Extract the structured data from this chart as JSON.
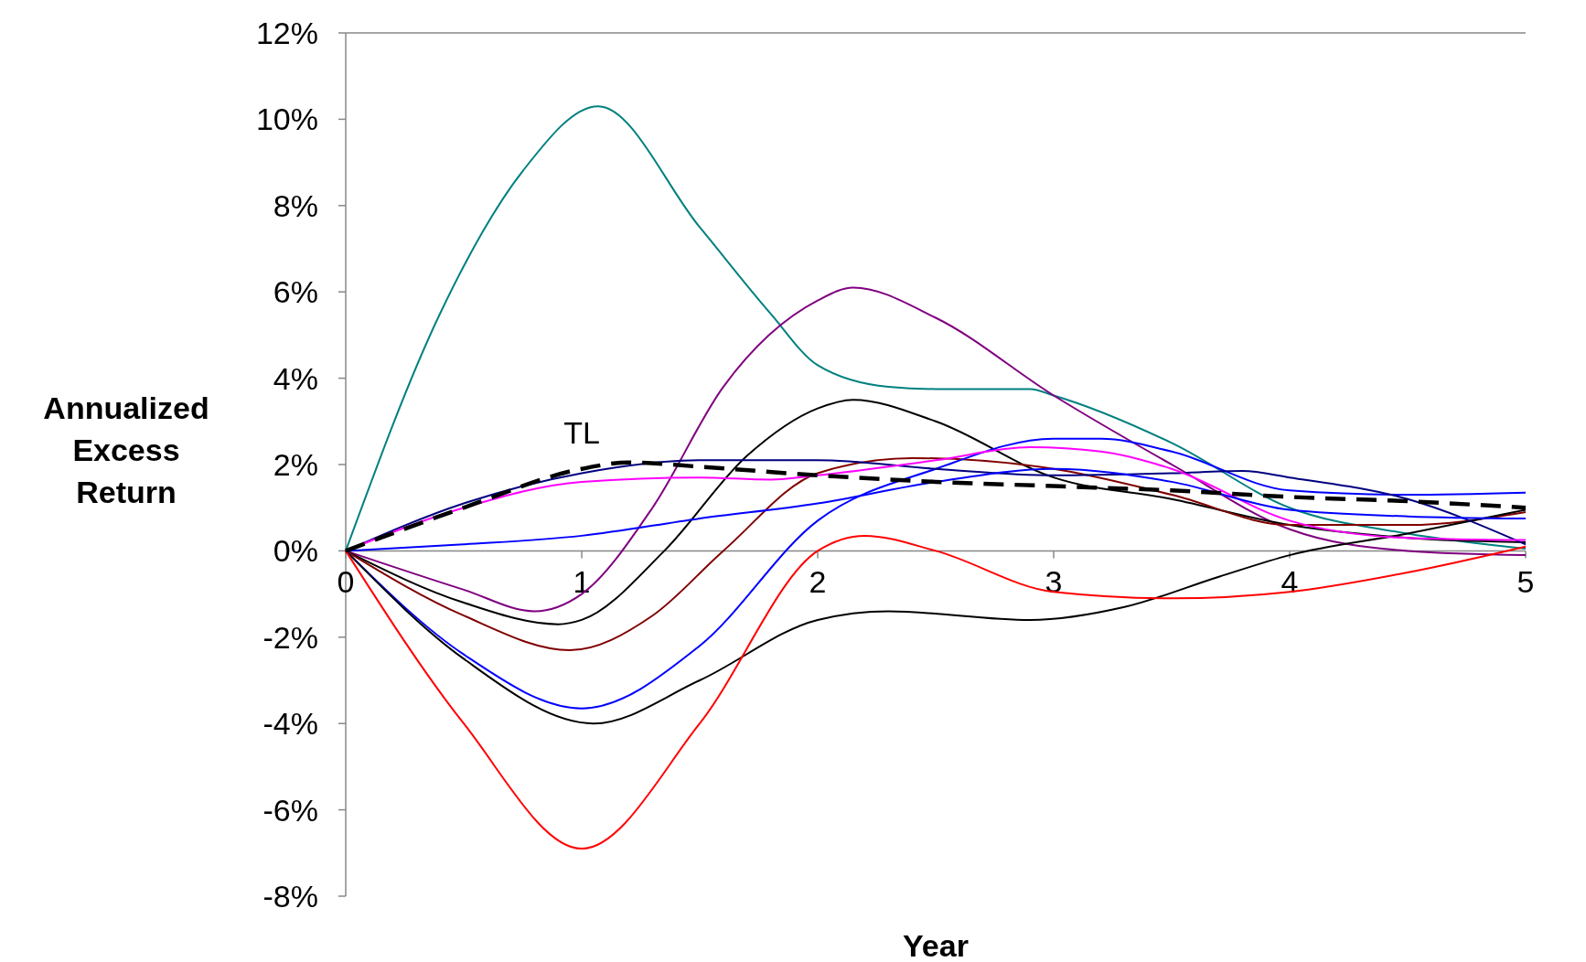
{
  "chart_data": {
    "type": "line",
    "xlabel": "Year",
    "ylabel": "Annualized Excess Return",
    "xlim": [
      0,
      5
    ],
    "xticks": [
      0,
      1,
      2,
      3,
      4,
      5
    ],
    "ylim": [
      -8,
      12
    ],
    "yticks": [
      {
        "value": -8,
        "label": "-8%"
      },
      {
        "value": -6,
        "label": "-6%"
      },
      {
        "value": -4,
        "label": "-4%"
      },
      {
        "value": -2,
        "label": "-2%"
      },
      {
        "value": 0,
        "label": "0%"
      },
      {
        "value": 2,
        "label": "2%"
      },
      {
        "value": 4,
        "label": "4%"
      },
      {
        "value": 6,
        "label": "6%"
      },
      {
        "value": 8,
        "label": "8%"
      },
      {
        "value": 10,
        "label": "10%"
      },
      {
        "value": 12,
        "label": "12%"
      }
    ],
    "grid": false,
    "x": [
      0,
      0.5,
      1,
      1.5,
      2,
      2.5,
      3,
      3.5,
      4,
      4.5,
      5
    ],
    "series": [
      {
        "color": "#008080",
        "x": [
          0,
          0.4,
          0.75,
          1.07,
          1.5,
          1.8,
          2,
          2.3,
          2.5,
          2.9,
          3,
          3.5,
          4,
          4.5,
          5
        ],
        "values": [
          0,
          5.5,
          8.8,
          10.3,
          7.5,
          5.5,
          4.3,
          3.8,
          3.75,
          3.75,
          3.6,
          2.5,
          1.0,
          0.4,
          0.05
        ]
      },
      {
        "color": "#800080",
        "x": [
          0,
          0.5,
          0.8,
          1,
          1.3,
          1.6,
          2,
          2.15,
          2.5,
          3,
          3.5,
          4,
          4.5,
          5
        ],
        "values": [
          0,
          -0.9,
          -1.4,
          -1.0,
          1.0,
          3.8,
          5.8,
          6.1,
          5.4,
          3.6,
          2.0,
          0.5,
          0.0,
          -0.1
        ]
      },
      {
        "color": "#000000",
        "x": [
          0,
          0.5,
          0.9,
          1,
          1.35,
          1.7,
          2,
          2.15,
          2.5,
          3,
          3.5,
          4,
          4.5,
          5
        ],
        "values": [
          0,
          -1.2,
          -1.7,
          -1.6,
          0,
          2.2,
          3.3,
          3.5,
          3.0,
          1.7,
          1.2,
          0.6,
          0.3,
          0.2
        ]
      },
      {
        "color": "#800000",
        "x": [
          0,
          0.5,
          0.95,
          1.3,
          1.6,
          2,
          2.4,
          3,
          3.5,
          4,
          4.5,
          5
        ],
        "values": [
          0,
          -1.5,
          -2.3,
          -1.5,
          0,
          1.8,
          2.15,
          1.9,
          1.3,
          0.6,
          0.6,
          0.9
        ]
      },
      {
        "color": "#0000ff",
        "x": [
          0,
          0.5,
          1,
          1.5,
          2,
          2.5,
          3,
          3.2,
          3.5,
          4,
          4.5,
          5
        ],
        "values": [
          0,
          -2.4,
          -3.65,
          -2.2,
          0.7,
          1.9,
          2.6,
          2.6,
          2.3,
          1.4,
          1.3,
          1.35
        ]
      },
      {
        "color": "#000000",
        "x": [
          0,
          0.5,
          1.05,
          1.5,
          2,
          2.3,
          2.9,
          3.3,
          3.7,
          4,
          4.5,
          5
        ],
        "values": [
          0,
          -2.5,
          -4.0,
          -3.0,
          -1.6,
          -1.4,
          -1.6,
          -1.3,
          -0.6,
          -0.1,
          0.4,
          0.95
        ]
      },
      {
        "color": "#ff0000",
        "x": [
          0,
          0.5,
          1,
          1.5,
          2,
          2.2,
          2.5,
          3,
          3.5,
          4,
          4.5,
          5
        ],
        "values": [
          0,
          -4.0,
          -6.9,
          -4.0,
          0,
          0.35,
          0,
          -0.95,
          -1.1,
          -0.95,
          -0.5,
          0.1
        ]
      },
      {
        "color": "#000080",
        "x": [
          0,
          0.5,
          1,
          1.5,
          2,
          2.5,
          3,
          3.5,
          3.8,
          4,
          4.5,
          5
        ],
        "values": [
          0,
          1.1,
          1.8,
          2.1,
          2.1,
          1.9,
          1.75,
          1.8,
          1.85,
          1.7,
          1.2,
          0.15
        ]
      },
      {
        "color": "#ff00ff",
        "x": [
          0,
          0.5,
          1,
          1.5,
          1.8,
          2,
          2.5,
          2.9,
          3.2,
          3.5,
          4,
          4.5,
          5
        ],
        "values": [
          0,
          1.0,
          1.6,
          1.7,
          1.65,
          1.75,
          2.1,
          2.4,
          2.3,
          1.9,
          0.7,
          0.3,
          0.25
        ]
      },
      {
        "color": "#0000ff",
        "values": [
          0,
          0.15,
          0.35,
          0.75,
          1.1,
          1.6,
          1.9,
          1.6,
          0.95,
          0.8,
          0.75
        ]
      },
      {
        "name": "TL",
        "color": "#000000",
        "line_style": "dashed",
        "x": [
          0,
          0.5,
          1,
          1.2,
          1.5,
          2,
          2.5,
          3,
          3.5,
          4,
          4.5,
          5
        ],
        "values": [
          0,
          1.0,
          1.9,
          2.05,
          1.95,
          1.75,
          1.6,
          1.5,
          1.4,
          1.25,
          1.15,
          1.0
        ]
      }
    ]
  }
}
